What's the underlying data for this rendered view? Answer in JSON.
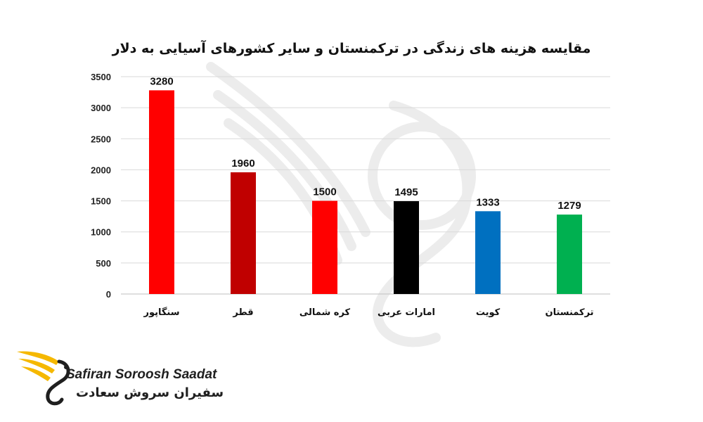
{
  "chart_data": {
    "type": "bar",
    "title": "مقایسه هزینه های زندگی در ترکمنستان و سایر کشورهای آسیایی به دلار",
    "xlabel": "",
    "ylabel": "",
    "categories": [
      "سنگاپور",
      "قطر",
      "کره شمالی",
      "امارات عربی",
      "کویت",
      "ترکمنستان"
    ],
    "values": [
      3280,
      1960,
      1500,
      1495,
      1333,
      1279
    ],
    "data_labels": [
      "3280",
      "1960",
      "1500",
      "1495",
      "1333",
      "1279"
    ],
    "bar_colors": [
      "#ff0000",
      "#c00000",
      "#ff0000",
      "#000000",
      "#0070c0",
      "#00b050"
    ],
    "ylim": [
      0,
      3500
    ],
    "y_ticks": [
      0,
      500,
      1000,
      1500,
      2000,
      2500,
      3000,
      3500
    ],
    "grid": true,
    "legend": "none"
  },
  "branding": {
    "name_latin": "Safiran Soroosh Saadat",
    "name_persian": "سفیران سروش سعادت",
    "logo_icon": "winged-bird-icon",
    "logo_color": "#f5b800"
  }
}
